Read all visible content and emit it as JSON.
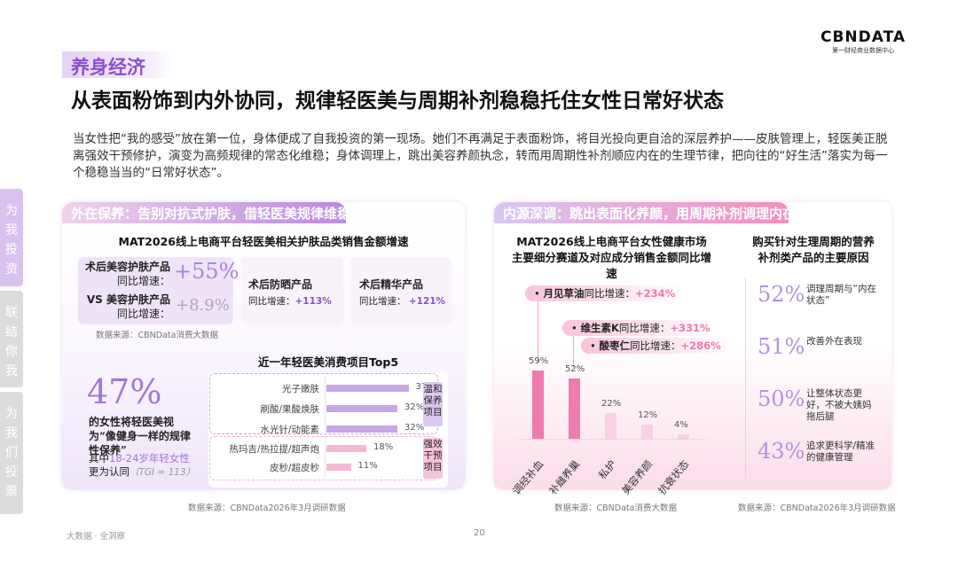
{
  "logo": {
    "text": "CBNDATA",
    "subtitle": "第一财经商业数据中心"
  },
  "section_tag": "养身经济",
  "heading": "从表面粉饰到内外协同，规律轻医美与周期补剂稳稳托住女性日常好状态",
  "paragraph": "当女性把“我的感受”放在第一位，身体便成了自我投资的第一现场。她们不再满足于表面粉饰，将目光投向更自洽的深层养护——皮肤管理上，轻医美正脱离强效干预修护，演变为高频规律的常态化维稳；身体调理上，跳出美容养颜执念，转而用周期性补剂顺应内在的生理节律，把向往的“好生活”落实为每一个稳稳当当的“日常好状态”。",
  "sidebar": [
    {
      "label": "为我投资"
    },
    {
      "label": "联结你我"
    },
    {
      "label": "为我们投票"
    }
  ],
  "left": {
    "band": "外在保养：告别对抗式护肤，借轻医美规律维稳",
    "chart_title": "MAT2026线上电商平台轻医美相关护肤品类销售金额增速",
    "card1": {
      "name1": "术后美容护肤产品",
      "label1": "同比增速：",
      "value1": "+55%",
      "name2": "VS 美容护肤产品",
      "label2": "同比增速：",
      "value2": "+8.9%"
    },
    "card2": {
      "name": "术后防晒产品",
      "label": "同比增速：",
      "value": "+113%"
    },
    "card3": {
      "name": "术后精华产品",
      "label": "同比增速：",
      "value": "+121%"
    },
    "source1": "数据来源：CBNData消费大数据",
    "stat": {
      "value": "47%",
      "desc": "的女性将轻医美视为“像健身一样的规律性保养”",
      "note_pre": "其中",
      "note_hl": "18-24岁年轻女性",
      "note_post": "更为认同",
      "tgi": "（TGI = 113）"
    },
    "top5_title": "近一年轻医美消费项目Top5",
    "group1": "温和保养项目",
    "group2": "强效干预项目",
    "source2": "数据来源：CBNData2026年3月调研数据"
  },
  "right": {
    "band": "内源深调：跳出表面化养颜，用周期补剂调理内在",
    "chart_title": "MAT2026线上电商平台女性健康市场主要细分赛道及对应成分销售金额同比增速",
    "callouts": [
      {
        "name": "月见草油",
        "label": "同比增速：",
        "value": "+234%"
      },
      {
        "name": "维生素K",
        "label": "同比增速：",
        "value": "+331%"
      },
      {
        "name": "酸枣仁",
        "label": "同比增速：",
        "value": "+286%"
      }
    ],
    "source1": "数据来源：CBNData消费大数据",
    "reasons_title": "购买针对生理周期的营养补剂类产品的主要原因",
    "reasons": [
      {
        "value": "52%",
        "text": "调理周期与“内在状态”"
      },
      {
        "value": "51%",
        "text": "改善外在表现"
      },
      {
        "value": "50%",
        "text": "让整体状态更好，不被大姨妈拖后腿"
      },
      {
        "value": "43%",
        "text": "追求更科学/精准的健康管理"
      }
    ],
    "source2": "数据来源：CBNData2026年3月调研数据"
  },
  "chart_data": [
    {
      "type": "bar",
      "orientation": "horizontal",
      "title": "近一年轻医美消费项目Top5",
      "categories": [
        "光子嫩肤",
        "刷酸/果酸焕肤",
        "水光针/动能素",
        "热玛吉/热拉提/超声炮",
        "皮秒/超皮秒"
      ],
      "values": [
        37,
        32,
        32,
        18,
        11
      ],
      "labels": [
        "37%",
        "32%",
        "32%",
        "18%",
        "11%"
      ],
      "colors": [
        "#c7a8e6",
        "#c7a8e6",
        "#c7a8e6",
        "#f5b8d4",
        "#f5b8d4"
      ]
    },
    {
      "type": "bar",
      "title": "MAT2026线上电商平台女性健康市场主要细分赛道及对应成分销售金额同比增速",
      "categories": [
        "调经补血",
        "补雌养巢",
        "私护",
        "美容养颜",
        "抗衰状态"
      ],
      "values": [
        59,
        52,
        22,
        12,
        4
      ],
      "labels": [
        "59%",
        "52%",
        "22%",
        "12%",
        "4%"
      ],
      "colors": [
        "#f07bb0",
        "#f07bb0",
        "#fbd0e2",
        "#fbd0e2",
        "#fbd0e2"
      ]
    }
  ],
  "footer": {
    "left": "大数据 · 全洞察",
    "page": "20"
  },
  "colors": {
    "purple": "#8c50cc",
    "pink": "#ee5a9e"
  }
}
